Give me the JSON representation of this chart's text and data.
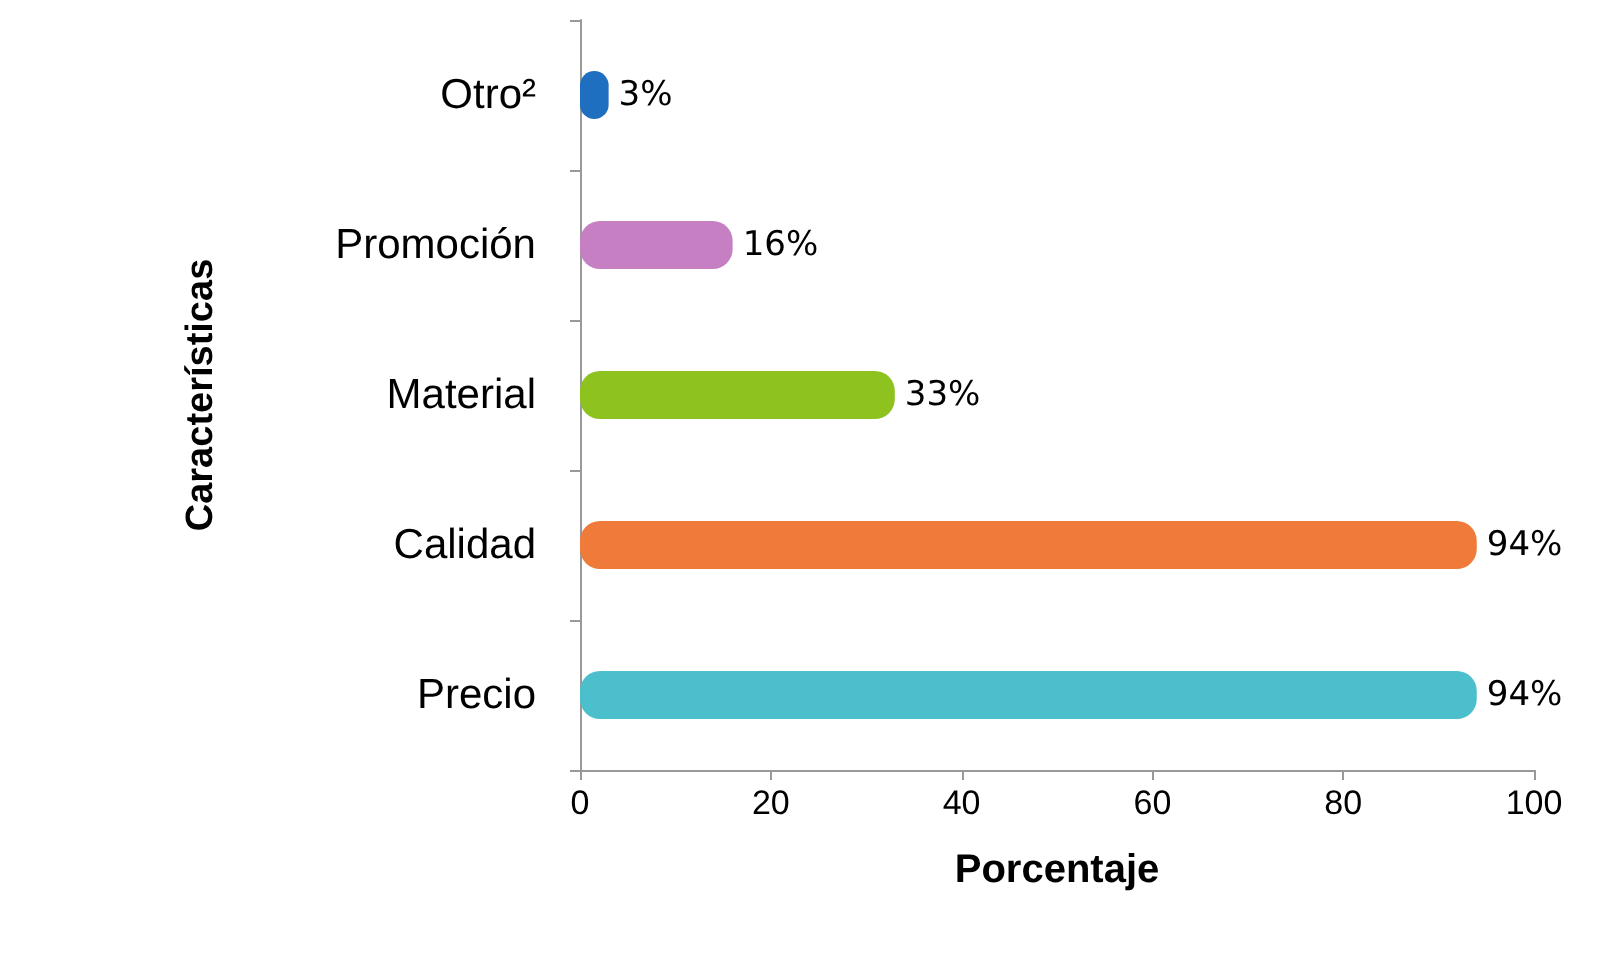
{
  "chart_data": {
    "type": "bar",
    "orientation": "horizontal",
    "xlabel": "Porcentaje",
    "ylabel": "Características",
    "categories": [
      "Otro²",
      "Promoción",
      "Material",
      "Calidad",
      "Precio"
    ],
    "values": [
      3,
      16,
      33,
      94,
      94
    ],
    "colors": [
      "#1f6fc0",
      "#c77fc4",
      "#8dc21f",
      "#f07a3a",
      "#4bbfcc"
    ],
    "value_labels": [
      "3%",
      "16%",
      "33%",
      "94%",
      "94%"
    ],
    "xlim": [
      0,
      100
    ],
    "xticks": [
      0,
      20,
      40,
      60,
      80,
      100
    ],
    "grid": false
  }
}
